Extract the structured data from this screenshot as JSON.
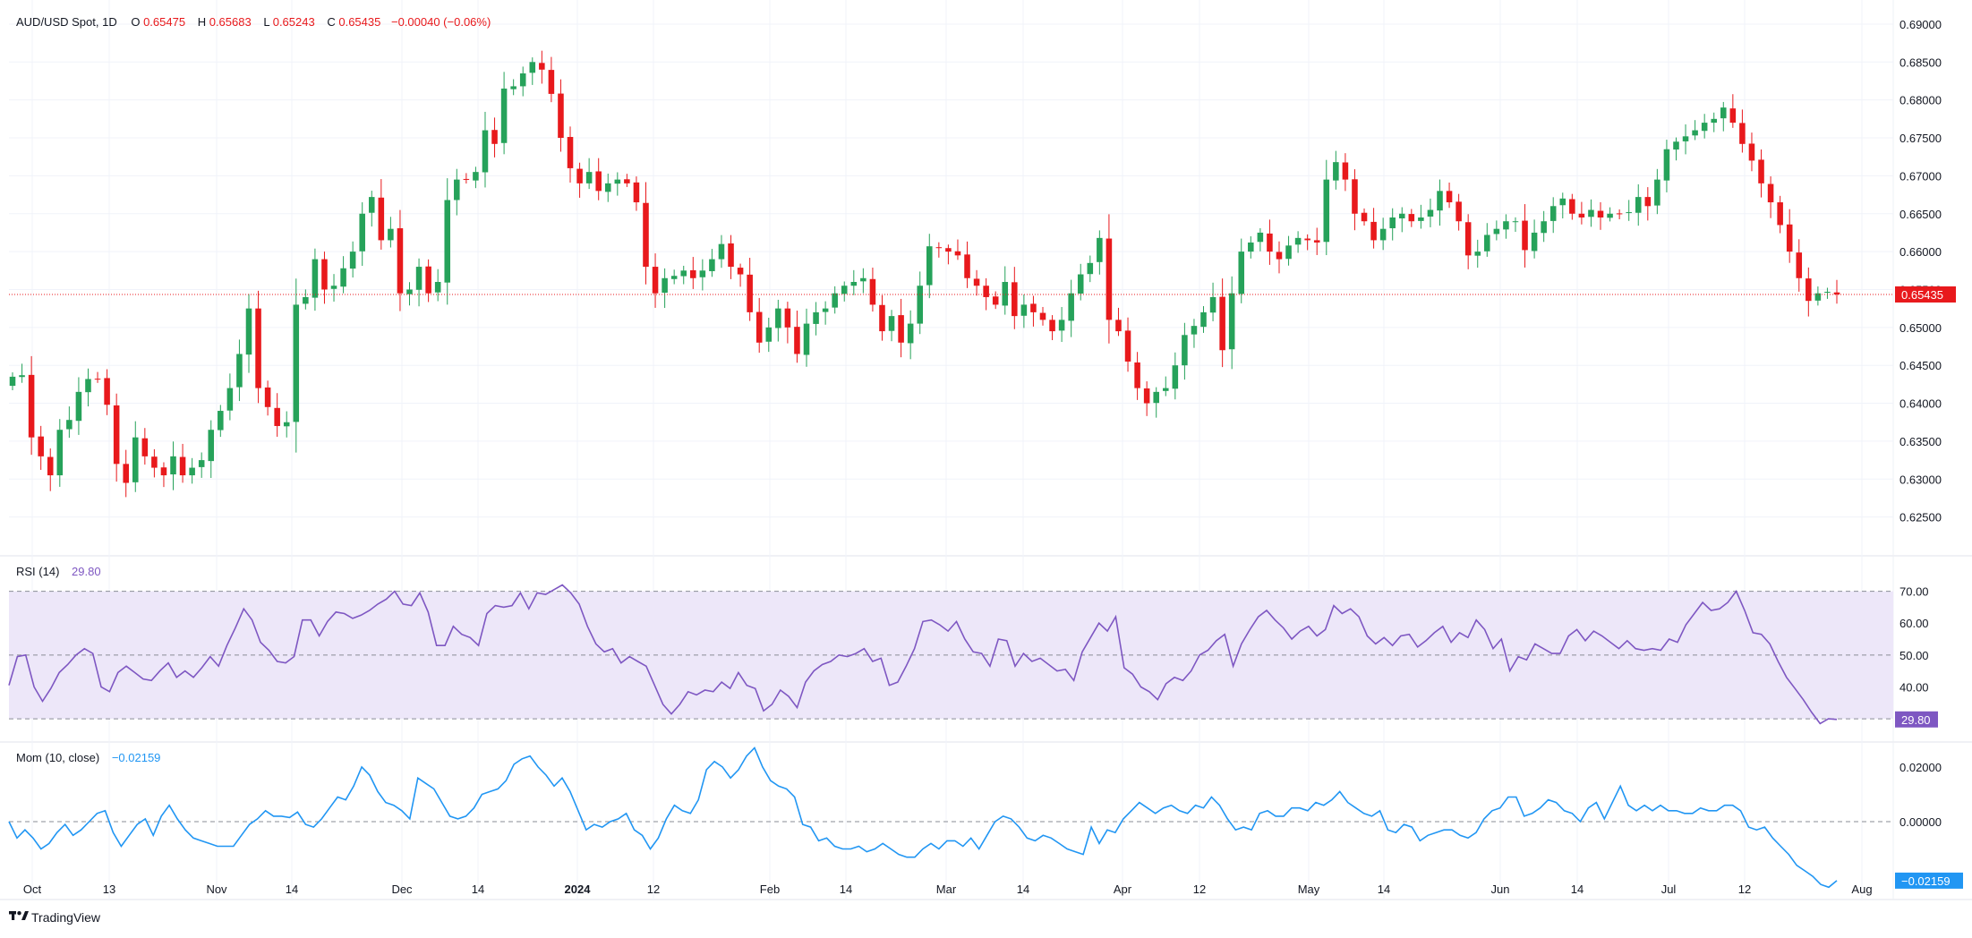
{
  "header": {
    "symbol": "AUD/USD Spot, 1D",
    "o_label": "O",
    "o_value": "0.65475",
    "h_label": "H",
    "h_value": "0.65683",
    "l_label": "L",
    "l_value": "0.65243",
    "c_label": "C",
    "c_value": "0.65435",
    "change": "−0.00040 (−0.06%)"
  },
  "rsi_header": {
    "label": "RSI (14)",
    "value": "29.80"
  },
  "mom_header": {
    "label": "Mom (10, close)",
    "value": "−0.02159"
  },
  "branding": {
    "text": "TradingView"
  },
  "colors": {
    "up": "#26a25a",
    "down": "#e8191c",
    "rsi_line": "#7e57c2",
    "rsi_band": "#ede7f9",
    "mom_line": "#2196f3",
    "header_values": "#e8191c",
    "price_line": "#e8191c"
  },
  "chart_data": [
    {
      "type": "candlestick",
      "title": "AUD/USD Spot, 1D",
      "ylim": [
        0.62,
        0.692
      ],
      "y_ticks": [
        "0.69000",
        "0.68500",
        "0.68000",
        "0.67500",
        "0.67000",
        "0.66500",
        "0.66000",
        "0.65500",
        "0.65000",
        "0.64500",
        "0.64000",
        "0.63500",
        "0.63000",
        "0.62500"
      ],
      "x_ticks": [
        "Oct",
        "13",
        "Nov",
        "14",
        "Dec",
        "14",
        "2024",
        "12",
        "Feb",
        "14",
        "Mar",
        "14",
        "Apr",
        "12",
        "May",
        "14",
        "Jun",
        "14",
        "Jul",
        "12",
        "Aug"
      ],
      "last_price": 0.65435,
      "last_price_label": "0.65435",
      "closes": [
        0.6435,
        0.6437,
        0.6355,
        0.633,
        0.6305,
        0.6365,
        0.6378,
        0.6415,
        0.6432,
        0.6432,
        0.6398,
        0.632,
        0.6295,
        0.6355,
        0.633,
        0.6315,
        0.6305,
        0.633,
        0.6305,
        0.6315,
        0.6325,
        0.6365,
        0.639,
        0.642,
        0.6465,
        0.6525,
        0.642,
        0.6395,
        0.637,
        0.6375,
        0.653,
        0.654,
        0.659,
        0.655,
        0.6555,
        0.6578,
        0.66,
        0.665,
        0.6672,
        0.6615,
        0.663,
        0.6545,
        0.655,
        0.658,
        0.6545,
        0.656,
        0.6668,
        0.6695,
        0.6695,
        0.6705,
        0.676,
        0.6742,
        0.6815,
        0.6818,
        0.6835,
        0.685,
        0.684,
        0.6808,
        0.675,
        0.671,
        0.669,
        0.6705,
        0.668,
        0.669,
        0.6695,
        0.669,
        0.6665,
        0.658,
        0.6545,
        0.6565,
        0.6568,
        0.6575,
        0.6565,
        0.6575,
        0.659,
        0.661,
        0.658,
        0.657,
        0.652,
        0.648,
        0.65,
        0.6525,
        0.65,
        0.6465,
        0.6505,
        0.652,
        0.6525,
        0.6545,
        0.6555,
        0.656,
        0.6565,
        0.653,
        0.6495,
        0.6515,
        0.648,
        0.6505,
        0.6555,
        0.6607,
        0.6605,
        0.66,
        0.6595,
        0.6565,
        0.6555,
        0.654,
        0.653,
        0.656,
        0.6515,
        0.653,
        0.652,
        0.651,
        0.6495,
        0.651,
        0.6545,
        0.657,
        0.6585,
        0.6618,
        0.651,
        0.6495,
        0.6455,
        0.642,
        0.64,
        0.6415,
        0.642,
        0.645,
        0.649,
        0.6502,
        0.652,
        0.654,
        0.647,
        0.6545,
        0.66,
        0.6612,
        0.6625,
        0.66,
        0.659,
        0.6608,
        0.6618,
        0.6615,
        0.6612,
        0.6695,
        0.6718,
        0.6695,
        0.665,
        0.664,
        0.6615,
        0.663,
        0.6645,
        0.665,
        0.664,
        0.6645,
        0.6655,
        0.668,
        0.6665,
        0.664,
        0.6595,
        0.66,
        0.6622,
        0.663,
        0.664,
        0.664,
        0.6602,
        0.6625,
        0.664,
        0.666,
        0.667,
        0.665,
        0.6645,
        0.6655,
        0.6645,
        0.665,
        0.665,
        0.6652,
        0.6672,
        0.666,
        0.6695,
        0.6735,
        0.6745,
        0.6752,
        0.676,
        0.677,
        0.6775,
        0.679,
        0.677,
        0.6742,
        0.672,
        0.669,
        0.6665,
        0.6635,
        0.66,
        0.6565,
        0.6535,
        0.6545,
        0.6547,
        0.65435
      ],
      "volatility_note": "",
      "price_decimals": 5
    },
    {
      "type": "line",
      "name": "RSI (14)",
      "ylim": [
        23,
        80
      ],
      "y_ticks": [
        "70.00",
        "60.00",
        "50.00",
        "40.00"
      ],
      "band": [
        30,
        70
      ],
      "midline": 50,
      "last_value": 29.8,
      "last_value_label": "29.80",
      "values": [
        40.5,
        49.5,
        50.0,
        40.0,
        35.5,
        39.5,
        44.5,
        47.0,
        50.0,
        52.0,
        50.5,
        40.0,
        38.5,
        44.5,
        46.5,
        44.5,
        42.5,
        42.0,
        45.0,
        47.5,
        43.0,
        45.0,
        43.0,
        46.0,
        49.5,
        46.5,
        53.0,
        58.5,
        64.5,
        61.0,
        54.0,
        51.5,
        48.0,
        47.5,
        49.5,
        61.0,
        61.0,
        56.0,
        60.5,
        63.5,
        63.0,
        61.5,
        62.5,
        64.0,
        66.0,
        67.5,
        70.0,
        66.0,
        65.5,
        69.5,
        63.5,
        53.0,
        53.0,
        59.0,
        56.5,
        55.5,
        53.0,
        63.0,
        65.5,
        65.0,
        65.5,
        69.5,
        64.5,
        69.5,
        69.0,
        70.5,
        72.0,
        69.5,
        66.0,
        59.0,
        53.5,
        51.0,
        52.0,
        47.5,
        49.5,
        48.0,
        46.5,
        40.5,
        34.5,
        31.5,
        34.5,
        38.5,
        37.5,
        39.0,
        38.5,
        41.5,
        39.5,
        44.5,
        40.5,
        39.5,
        32.5,
        34.5,
        39.0,
        37.0,
        33.5,
        41.5,
        45.0,
        47.0,
        48.0,
        50.0,
        49.5,
        50.5,
        52.0,
        48.0,
        49.0,
        40.5,
        41.5,
        46.5,
        52.0,
        60.5,
        61.0,
        59.5,
        57.5,
        60.5,
        55.0,
        51.0,
        50.5,
        46.5,
        55.0,
        54.5,
        46.5,
        50.5,
        48.0,
        49.0,
        47.0,
        45.0,
        45.5,
        42.0,
        51.0,
        55.5,
        60.0,
        57.5,
        62.0,
        46.0,
        44.0,
        40.0,
        38.5,
        36.0,
        41.0,
        43.0,
        42.0,
        45.0,
        50.0,
        51.5,
        54.5,
        56.5,
        46.5,
        53.5,
        58.0,
        62.0,
        64.0,
        61.0,
        58.5,
        55.0,
        57.5,
        59.0,
        56.0,
        58.0,
        65.5,
        63.0,
        64.5,
        62.0,
        56.0,
        53.5,
        55.5,
        53.0,
        56.0,
        56.5,
        52.5,
        54.5,
        57.0,
        59.0,
        54.0,
        57.0,
        55.5,
        61.0,
        58.0,
        52.0,
        55.0,
        45.0,
        49.5,
        48.5,
        53.5,
        52.0,
        50.5,
        50.5,
        56.0,
        58.0,
        54.5,
        57.5,
        56.0,
        54.0,
        52.0,
        54.5,
        52.0,
        51.5,
        52.0,
        51.5,
        55.0,
        54.0,
        59.5,
        63.0,
        66.5,
        64.0,
        64.5,
        66.5,
        70.0,
        64.0,
        57.0,
        56.5,
        53.5,
        48.0,
        43.0,
        39.5,
        36.0,
        32.0,
        28.5,
        30.0,
        29.8
      ],
      "x_ticks": []
    },
    {
      "type": "line",
      "name": "Mom (10, close)",
      "ylim": [
        -0.0285,
        0.0285
      ],
      "y_ticks": [
        "0.02000",
        "0.00000"
      ],
      "zero_line": 0,
      "last_value": -0.02159,
      "last_value_label": "−0.02159",
      "values": [
        0.0,
        -0.006,
        -0.003,
        -0.006,
        -0.01,
        -0.008,
        -0.004,
        -0.001,
        -0.005,
        -0.003,
        0.0,
        0.003,
        0.004,
        -0.004,
        -0.009,
        -0.005,
        -0.001,
        0.001,
        -0.005,
        0.002,
        0.006,
        0.001,
        -0.003,
        -0.006,
        -0.007,
        -0.008,
        -0.009,
        -0.009,
        -0.009,
        -0.005,
        -0.001,
        0.001,
        0.004,
        0.002,
        0.002,
        0.0015,
        0.0035,
        -0.001,
        -0.002,
        0.001,
        0.005,
        0.009,
        0.008,
        0.013,
        0.02,
        0.017,
        0.011,
        0.007,
        0.006,
        0.004,
        0.001,
        0.016,
        0.014,
        0.012,
        0.007,
        0.002,
        0.001,
        0.002,
        0.005,
        0.01,
        0.011,
        0.012,
        0.015,
        0.021,
        0.023,
        0.024,
        0.02,
        0.017,
        0.013,
        0.016,
        0.011,
        0.004,
        -0.003,
        -0.001,
        -0.002,
        0.0,
        0.001,
        0.003,
        -0.003,
        -0.005,
        -0.01,
        -0.006,
        0.001,
        0.006,
        0.004,
        0.003,
        0.008,
        0.019,
        0.022,
        0.02,
        0.016,
        0.019,
        0.024,
        0.027,
        0.02,
        0.015,
        0.013,
        0.012,
        0.009,
        -0.001,
        -0.002,
        -0.007,
        -0.006,
        -0.009,
        -0.01,
        -0.01,
        -0.009,
        -0.011,
        -0.01,
        -0.008,
        -0.01,
        -0.012,
        -0.013,
        -0.013,
        -0.01,
        -0.008,
        -0.01,
        -0.007,
        -0.007,
        -0.009,
        -0.006,
        -0.01,
        -0.005,
        0.0,
        0.002,
        0.001,
        -0.002,
        -0.006,
        -0.007,
        -0.005,
        -0.006,
        -0.008,
        -0.01,
        -0.011,
        -0.012,
        -0.002,
        -0.008,
        -0.003,
        -0.004,
        0.001,
        0.004,
        0.007,
        0.005,
        0.003,
        0.005,
        0.006,
        0.004,
        0.003,
        0.006,
        0.005,
        0.009,
        0.006,
        0.001,
        -0.003,
        -0.002,
        -0.003,
        0.003,
        0.004,
        0.002,
        0.002,
        0.005,
        0.005,
        0.004,
        0.007,
        0.006,
        0.008,
        0.011,
        0.007,
        0.005,
        0.003,
        0.002,
        0.004,
        -0.003,
        -0.004,
        -0.001,
        -0.002,
        -0.007,
        -0.005,
        -0.004,
        -0.003,
        -0.003,
        -0.005,
        -0.006,
        -0.004,
        0.001,
        0.004,
        0.005,
        0.009,
        0.009,
        0.002,
        0.003,
        0.005,
        0.008,
        0.007,
        0.004,
        0.003,
        0.0,
        0.005,
        0.007,
        0.001,
        0.007,
        0.013,
        0.006,
        0.004,
        0.006,
        0.004,
        0.006,
        0.004,
        0.004,
        0.003,
        0.003,
        0.005,
        0.004,
        0.004,
        0.006,
        0.006,
        0.004,
        -0.002,
        -0.003,
        -0.002,
        -0.006,
        -0.009,
        -0.012,
        -0.016,
        -0.018,
        -0.02,
        -0.023,
        -0.024,
        -0.0216
      ],
      "x_ticks": []
    }
  ]
}
